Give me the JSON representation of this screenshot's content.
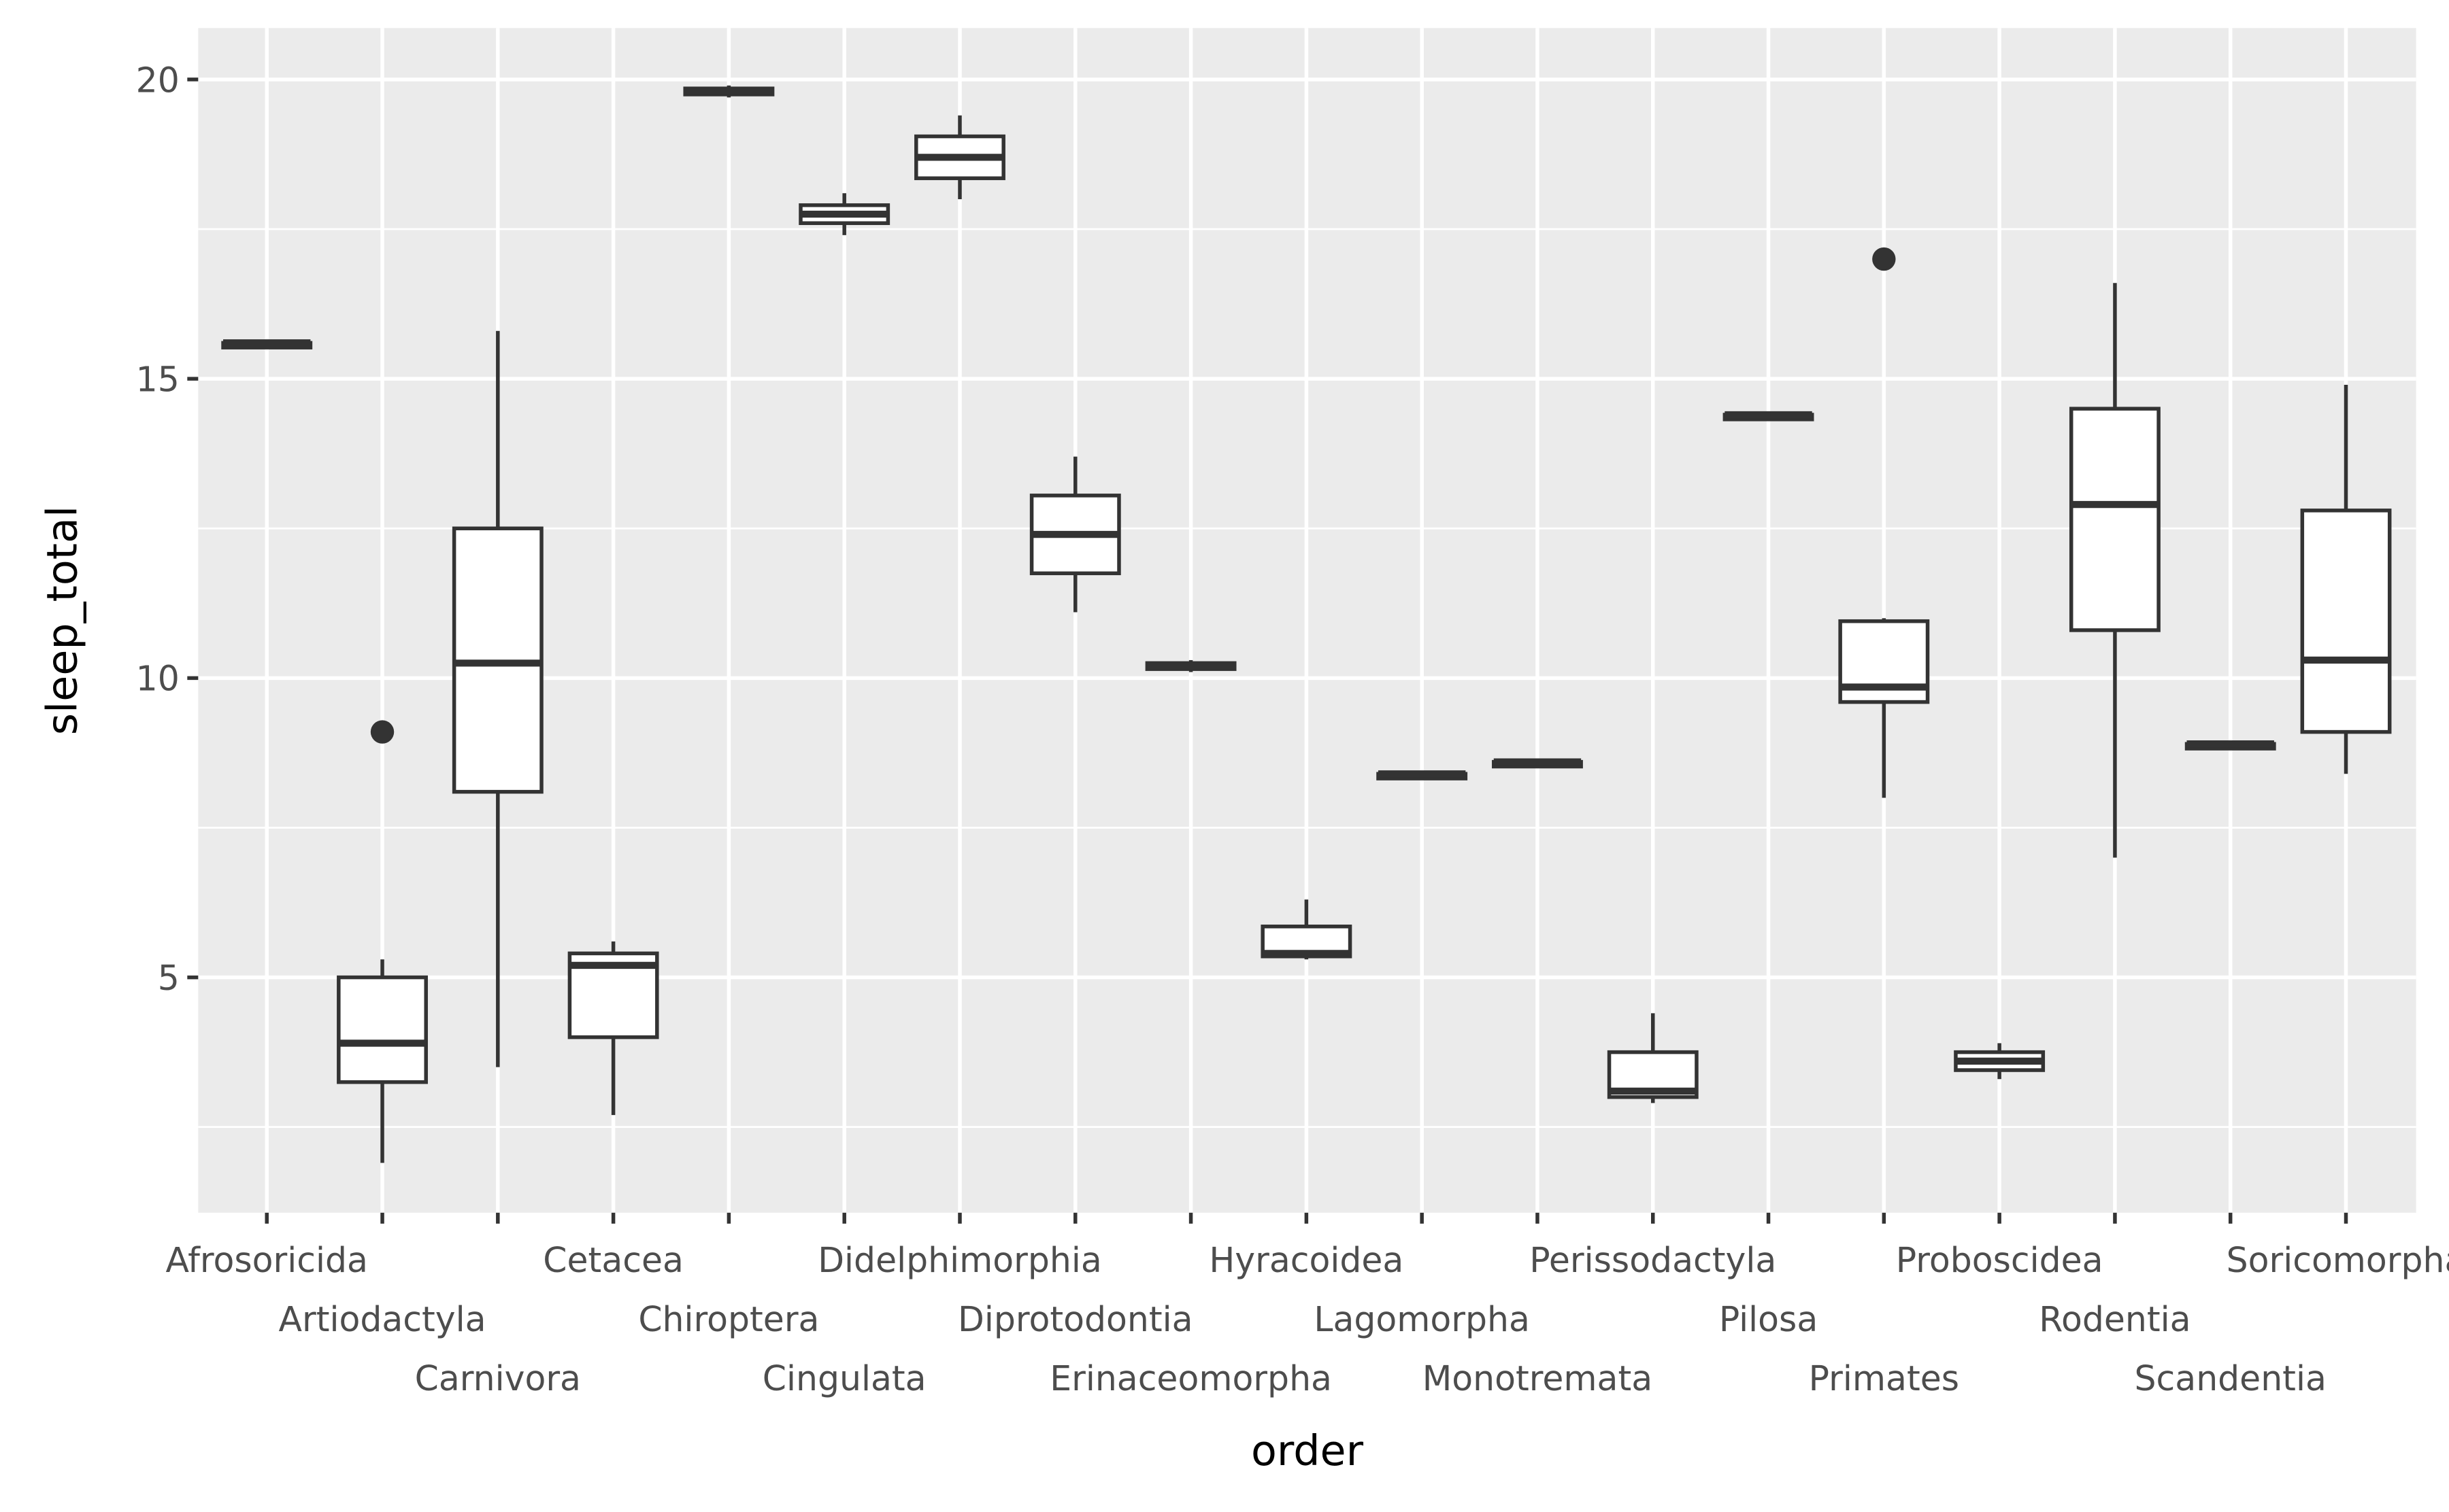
{
  "chart_data": {
    "type": "boxplot",
    "xlabel": "order",
    "ylabel": "sleep_total",
    "ylim": [
      1.2,
      20.8
    ],
    "yticks": [
      5,
      10,
      15,
      20
    ],
    "ytick_labels": [
      "5",
      "10",
      "15",
      "20"
    ],
    "grid": true,
    "categories": [
      "Afrosoricida",
      "Artiodactyla",
      "Carnivora",
      "Cetacea",
      "Chiroptera",
      "Cingulata",
      "Didelphimorphia",
      "Diprotodontia",
      "Erinaceomorpha",
      "Hyracoidea",
      "Lagomorpha",
      "Monotremata",
      "Perissodactyla",
      "Pilosa",
      "Primates",
      "Proboscidea",
      "Rodentia",
      "Scandentia",
      "Soricomorpha"
    ],
    "boxes": [
      {
        "lower": 15.6,
        "q1": 15.6,
        "median": 15.6,
        "q3": 15.6,
        "upper": 15.6,
        "outliers": []
      },
      {
        "lower": 1.9,
        "q1": 3.25,
        "median": 3.9,
        "q3": 5.0,
        "upper": 5.3,
        "outliers": [
          9.1
        ]
      },
      {
        "lower": 3.5,
        "q1": 8.1,
        "median": 10.25,
        "q3": 12.5,
        "upper": 15.8,
        "outliers": []
      },
      {
        "lower": 2.7,
        "q1": 4.0,
        "median": 5.2,
        "q3": 5.4,
        "upper": 5.6,
        "outliers": []
      },
      {
        "lower": 19.7,
        "q1": 19.75,
        "median": 19.8,
        "q3": 19.85,
        "upper": 19.9,
        "outliers": []
      },
      {
        "lower": 17.4,
        "q1": 17.6,
        "median": 17.75,
        "q3": 17.9,
        "upper": 18.1,
        "outliers": []
      },
      {
        "lower": 18.0,
        "q1": 18.35,
        "median": 18.7,
        "q3": 19.05,
        "upper": 19.4,
        "outliers": []
      },
      {
        "lower": 11.1,
        "q1": 11.75,
        "median": 12.4,
        "q3": 13.05,
        "upper": 13.7,
        "outliers": []
      },
      {
        "lower": 10.1,
        "q1": 10.15,
        "median": 10.2,
        "q3": 10.25,
        "upper": 10.3,
        "outliers": []
      },
      {
        "lower": 5.3,
        "q1": 5.35,
        "median": 5.4,
        "q3": 5.85,
        "upper": 6.3,
        "outliers": []
      },
      {
        "lower": 8.4,
        "q1": 8.4,
        "median": 8.4,
        "q3": 8.4,
        "upper": 8.4,
        "outliers": []
      },
      {
        "lower": 8.6,
        "q1": 8.6,
        "median": 8.6,
        "q3": 8.6,
        "upper": 8.6,
        "outliers": []
      },
      {
        "lower": 2.9,
        "q1": 3.0,
        "median": 3.1,
        "q3": 3.75,
        "upper": 4.4,
        "outliers": []
      },
      {
        "lower": 14.4,
        "q1": 14.4,
        "median": 14.4,
        "q3": 14.4,
        "upper": 14.4,
        "outliers": []
      },
      {
        "lower": 8.0,
        "q1": 9.6,
        "median": 9.85,
        "q3": 10.95,
        "upper": 11.0,
        "outliers": [
          17.0
        ]
      },
      {
        "lower": 3.3,
        "q1": 3.45,
        "median": 3.6,
        "q3": 3.75,
        "upper": 3.9,
        "outliers": []
      },
      {
        "lower": 7.0,
        "q1": 10.8,
        "median": 12.9,
        "q3": 14.5,
        "upper": 16.6,
        "outliers": []
      },
      {
        "lower": 8.9,
        "q1": 8.9,
        "median": 8.9,
        "q3": 8.9,
        "upper": 8.9,
        "outliers": []
      },
      {
        "lower": 8.4,
        "q1": 9.1,
        "median": 10.3,
        "q3": 12.8,
        "upper": 14.9,
        "outliers": []
      }
    ],
    "colors": {
      "panel": "#EBEBEB",
      "grid": "#FFFFFF",
      "box_line": "#333333",
      "box_fill": "#FFFFFF",
      "tick_text": "#4D4D4D"
    }
  }
}
